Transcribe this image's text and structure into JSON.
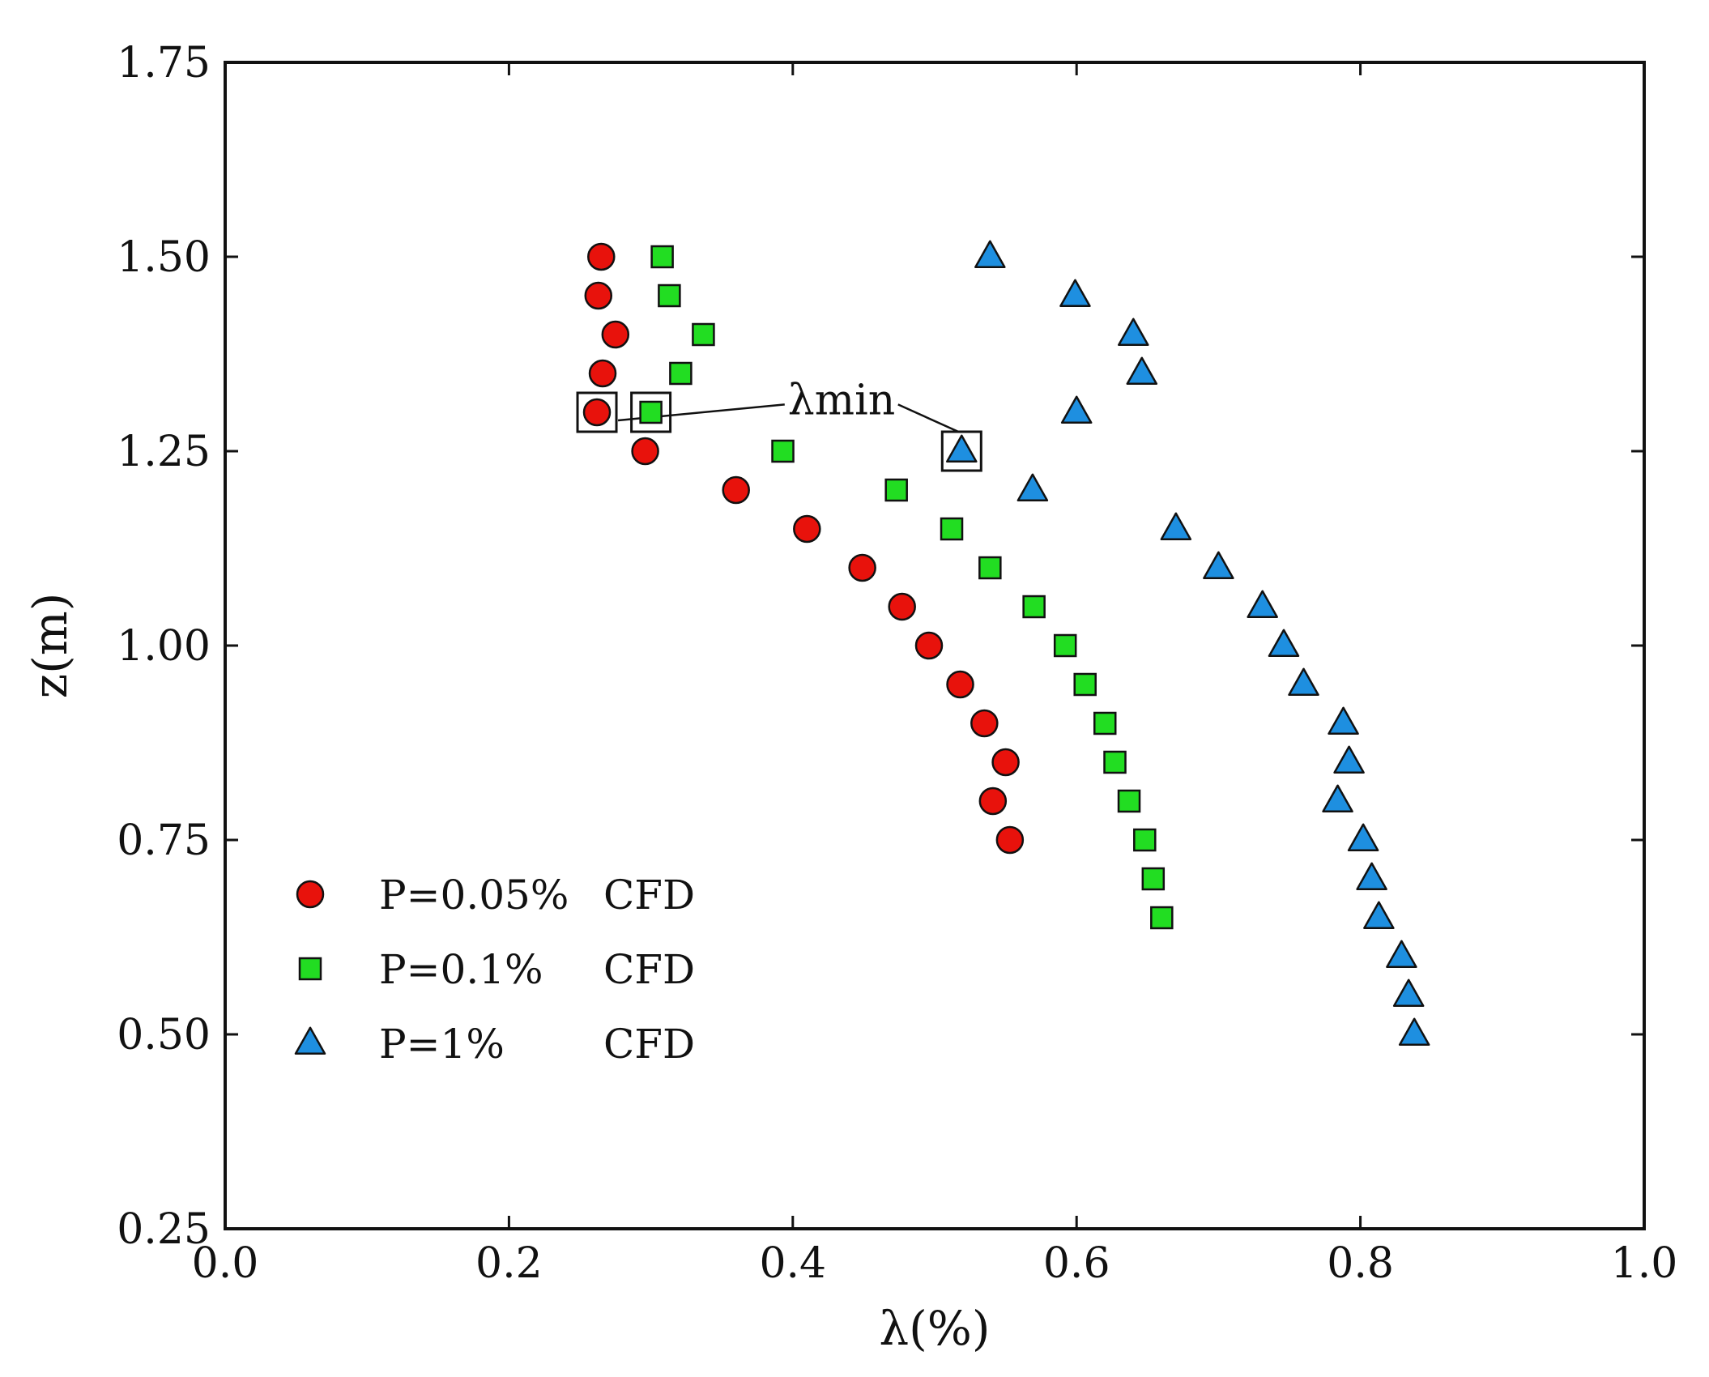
{
  "chart_data": {
    "type": "scatter",
    "title": "",
    "xlabel": "λ(%)",
    "ylabel": "z(m)",
    "xlim": [
      0.0,
      1.0
    ],
    "ylim": [
      0.25,
      1.75
    ],
    "x_ticks": [
      "0.0",
      "0.2",
      "0.4",
      "0.6",
      "0.8",
      "1.0"
    ],
    "x_tick_values": [
      0.0,
      0.2,
      0.4,
      0.6,
      0.8,
      1.0
    ],
    "y_ticks": [
      "0.25",
      "0.50",
      "0.75",
      "1.00",
      "1.25",
      "1.50",
      "1.75"
    ],
    "y_tick_values": [
      0.25,
      0.5,
      0.75,
      1.0,
      1.25,
      1.5,
      1.75
    ],
    "grid": false,
    "legend_position": "bottom-left",
    "series": [
      {
        "name": "P=0.05%",
        "method": "CFD",
        "marker": "circle",
        "color": "#e8120c",
        "points": [
          {
            "x": 0.265,
            "y": 1.5
          },
          {
            "x": 0.263,
            "y": 1.45
          },
          {
            "x": 0.275,
            "y": 1.4
          },
          {
            "x": 0.266,
            "y": 1.35
          },
          {
            "x": 0.262,
            "y": 1.3
          },
          {
            "x": 0.296,
            "y": 1.25
          },
          {
            "x": 0.36,
            "y": 1.2
          },
          {
            "x": 0.41,
            "y": 1.15
          },
          {
            "x": 0.449,
            "y": 1.1
          },
          {
            "x": 0.477,
            "y": 1.05
          },
          {
            "x": 0.496,
            "y": 1.0
          },
          {
            "x": 0.518,
            "y": 0.95
          },
          {
            "x": 0.535,
            "y": 0.9
          },
          {
            "x": 0.55,
            "y": 0.85
          },
          {
            "x": 0.541,
            "y": 0.8
          },
          {
            "x": 0.553,
            "y": 0.75
          }
        ]
      },
      {
        "name": "P=0.1%",
        "method": "CFD",
        "marker": "square",
        "color": "#22dd22",
        "points": [
          {
            "x": 0.308,
            "y": 1.5
          },
          {
            "x": 0.313,
            "y": 1.45
          },
          {
            "x": 0.337,
            "y": 1.4
          },
          {
            "x": 0.321,
            "y": 1.35
          },
          {
            "x": 0.3,
            "y": 1.3
          },
          {
            "x": 0.393,
            "y": 1.25
          },
          {
            "x": 0.473,
            "y": 1.2
          },
          {
            "x": 0.512,
            "y": 1.15
          },
          {
            "x": 0.539,
            "y": 1.1
          },
          {
            "x": 0.57,
            "y": 1.05
          },
          {
            "x": 0.592,
            "y": 1.0
          },
          {
            "x": 0.606,
            "y": 0.95
          },
          {
            "x": 0.62,
            "y": 0.9
          },
          {
            "x": 0.627,
            "y": 0.85
          },
          {
            "x": 0.637,
            "y": 0.8
          },
          {
            "x": 0.648,
            "y": 0.75
          },
          {
            "x": 0.654,
            "y": 0.7
          },
          {
            "x": 0.66,
            "y": 0.65
          }
        ]
      },
      {
        "name": "P=1%",
        "method": "CFD",
        "marker": "triangle",
        "color": "#1e8fe0",
        "points": [
          {
            "x": 0.539,
            "y": 1.5
          },
          {
            "x": 0.599,
            "y": 1.45
          },
          {
            "x": 0.64,
            "y": 1.4
          },
          {
            "x": 0.646,
            "y": 1.35
          },
          {
            "x": 0.6,
            "y": 1.3
          },
          {
            "x": 0.519,
            "y": 1.25
          },
          {
            "x": 0.569,
            "y": 1.2
          },
          {
            "x": 0.67,
            "y": 1.15
          },
          {
            "x": 0.7,
            "y": 1.1
          },
          {
            "x": 0.731,
            "y": 1.05
          },
          {
            "x": 0.746,
            "y": 1.0
          },
          {
            "x": 0.76,
            "y": 0.95
          },
          {
            "x": 0.788,
            "y": 0.9
          },
          {
            "x": 0.792,
            "y": 0.85
          },
          {
            "x": 0.784,
            "y": 0.8
          },
          {
            "x": 0.802,
            "y": 0.75
          },
          {
            "x": 0.808,
            "y": 0.7
          },
          {
            "x": 0.813,
            "y": 0.65
          },
          {
            "x": 0.829,
            "y": 0.6
          },
          {
            "x": 0.834,
            "y": 0.55
          },
          {
            "x": 0.838,
            "y": 0.5
          }
        ]
      }
    ],
    "annotation": {
      "text": "λmin",
      "targets": [
        {
          "x": 0.262,
          "y": 1.3
        },
        {
          "x": 0.3,
          "y": 1.3
        },
        {
          "x": 0.519,
          "y": 1.25
        }
      ],
      "label_at": {
        "x": 0.4,
        "y": 1.31
      }
    }
  }
}
